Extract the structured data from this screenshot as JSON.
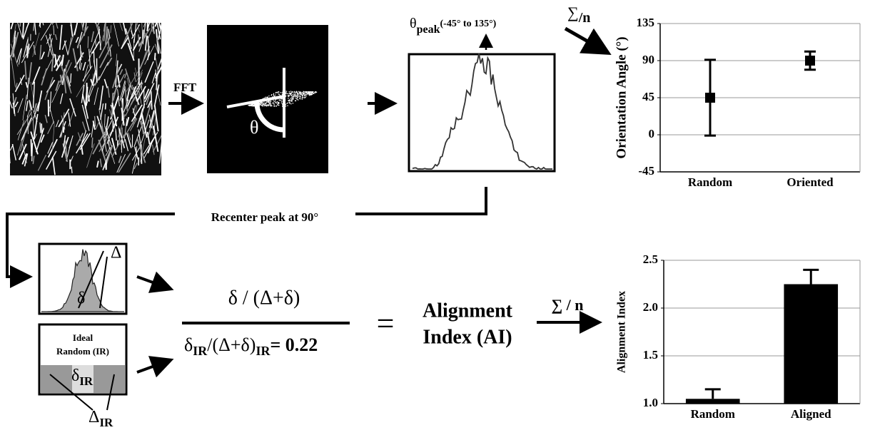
{
  "diagram": {
    "fft_label": "FFT",
    "theta": "θ",
    "peak_label": {
      "symbol": "θ",
      "subscript": "peak",
      "range": "(-45° to 135°)"
    },
    "sum_top": {
      "symbol": "∑",
      "subscript": "/n"
    },
    "recenter": "Recenter peak at 90°",
    "histogram_labels": {
      "delta_big": "Δ",
      "delta_small": "δ"
    },
    "ideal_random": {
      "line1": "Ideal",
      "line2": "Random (IR)",
      "delta_small": "δ",
      "delta_small_sub": "IR",
      "delta_big": "Δ",
      "delta_big_sub": "IR"
    },
    "formula": {
      "numerator": "δ / (Δ+δ)",
      "denominator": [
        "δ",
        "IR",
        "/(Δ+δ)",
        "IR",
        "= 0.22"
      ],
      "equals": "="
    },
    "result": {
      "line1": "Alignment",
      "line2": "Index (AI)"
    },
    "sum_bottom": "∑ / n"
  },
  "chart_data": [
    {
      "type": "errorbar",
      "ylabel": "Orientation Angle (°)",
      "categories": [
        "Random",
        "Oriented"
      ],
      "values": [
        45,
        90
      ],
      "errors": [
        46,
        11
      ],
      "color": "#000000",
      "ylim": [
        -45,
        135
      ],
      "yticks": [
        -45,
        0,
        45,
        90,
        135
      ],
      "grid": true
    },
    {
      "type": "bar",
      "ylabel": "Alignment Index",
      "categories": [
        "Random",
        "Aligned"
      ],
      "values": [
        1.05,
        2.25
      ],
      "errors": [
        0.1,
        0.15
      ],
      "color": "#000000",
      "ylim": [
        1.0,
        2.5
      ],
      "yticks": [
        {
          "value": 1.0,
          "label": "1.0"
        },
        1.5,
        {
          "value": 2.0,
          "label": "2.0"
        },
        2.5
      ],
      "grid": true
    }
  ]
}
